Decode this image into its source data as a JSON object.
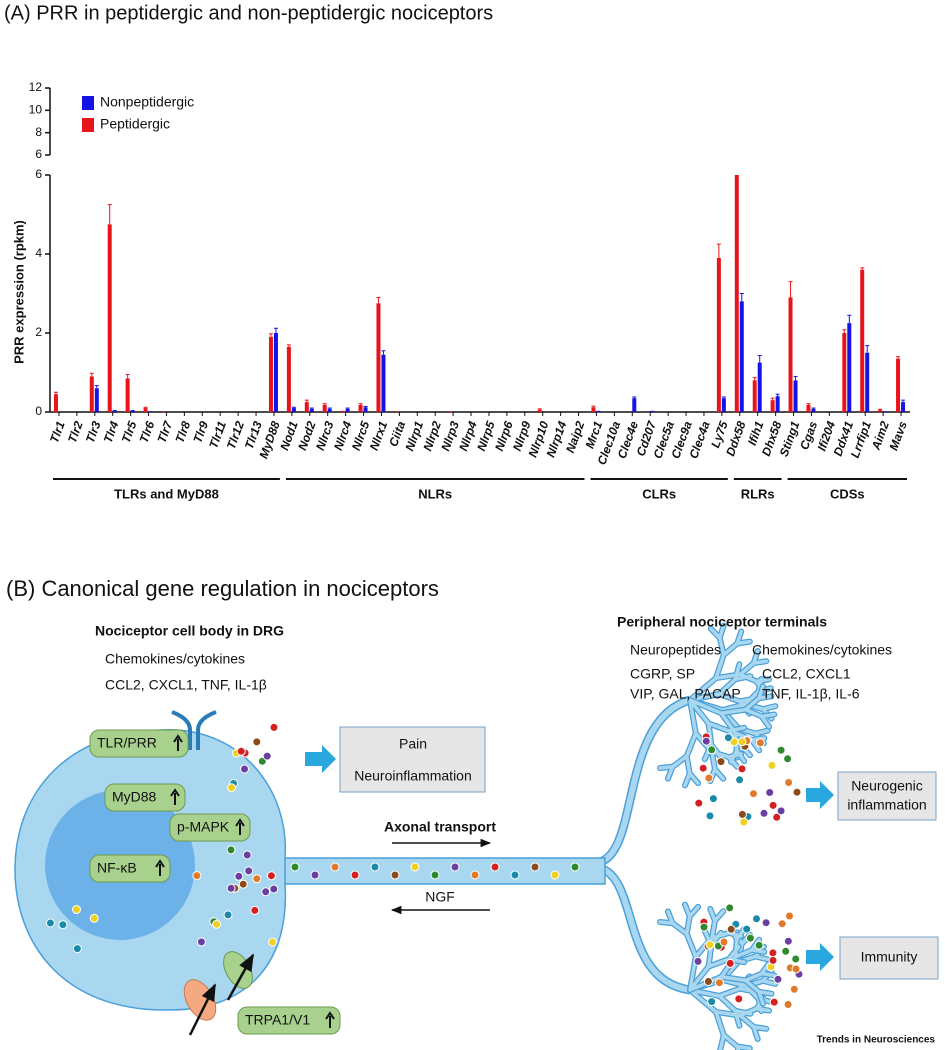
{
  "chart_data": {
    "type": "bar",
    "title": "(A)  PRR in peptidergic and non-peptidergic nociceptors",
    "y_label": "PRR expression (rpkm)",
    "categories": [
      "Tlr1",
      "Tlr2",
      "Tlr3",
      "Tlr4",
      "Tlr5",
      "Tlr6",
      "Tlr7",
      "Tlr8",
      "Tlr9",
      "Tlr11",
      "Tlr12",
      "Tlr13",
      "MyD88",
      "Nod1",
      "Nod2",
      "Nlrc3",
      "Nlrc4",
      "Nlrc5",
      "Nlrx1",
      "Ciita",
      "Nlrp1",
      "Nlrp2",
      "Nlrp3",
      "Nlrp4",
      "Nlrp5",
      "Nlrp6",
      "Nlrp9",
      "Nlrp10",
      "Nlrp14",
      "Naip2",
      "Mrc1",
      "Clec10a",
      "Clec4e",
      "Cd207",
      "Clec5a",
      "Clec9a",
      "Clec4a",
      "Ly75",
      "Ddx58",
      "Ifih1",
      "Dhx58",
      "Sting1",
      "Cgas",
      "Ifi204",
      "Ddx41",
      "Lrrfip1",
      "Aim2",
      "Mavs"
    ],
    "series": [
      {
        "name": "Peptidergic",
        "color": "#e8141c",
        "values": [
          0.45,
          0,
          0.9,
          4.75,
          0.85,
          0.1,
          0.02,
          0,
          0,
          0,
          0,
          0,
          1.9,
          1.65,
          0.25,
          0.18,
          0.03,
          0.18,
          2.75,
          0.02,
          0,
          0,
          0.02,
          0,
          0,
          0,
          0,
          0.06,
          0,
          0,
          0.12,
          0,
          0,
          0,
          0,
          0,
          0,
          3.9,
          6,
          0.8,
          0.3,
          2.9,
          0.18,
          0,
          2,
          3.6,
          0.05,
          1.35
        ],
        "errors": [
          0.05,
          0,
          0.08,
          0.5,
          0.1,
          0.02,
          0,
          0,
          0,
          0,
          0,
          0,
          0.08,
          0.05,
          0.05,
          0.03,
          0,
          0.03,
          0.15,
          0,
          0,
          0,
          0,
          0,
          0,
          0,
          0,
          0.02,
          0,
          0,
          0.03,
          0,
          0,
          0,
          0,
          0,
          0,
          0.35,
          0,
          0.07,
          0.05,
          0.4,
          0.03,
          0,
          0.08,
          0.05,
          0.02,
          0.05
        ]
      },
      {
        "name": "Nonpeptidergic",
        "color": "#1414e6",
        "values": [
          0,
          0,
          0.6,
          0.05,
          0.05,
          0.02,
          0,
          0,
          0,
          0,
          0,
          0,
          2,
          0.1,
          0.08,
          0.08,
          0.08,
          0.12,
          1.45,
          0,
          0,
          0,
          0,
          0,
          0,
          0,
          0,
          0,
          0,
          0,
          0.03,
          0,
          0.35,
          0.03,
          0,
          0,
          0,
          0.35,
          2.8,
          1.25,
          0.4,
          0.8,
          0.08,
          0,
          2.25,
          1.5,
          0.02,
          0.25
        ],
        "errors": [
          0,
          0,
          0.07,
          0,
          0,
          0,
          0,
          0,
          0,
          0,
          0,
          0,
          0.12,
          0.02,
          0.02,
          0.02,
          0.02,
          0.02,
          0.1,
          0,
          0,
          0,
          0,
          0,
          0,
          0,
          0,
          0,
          0,
          0,
          0,
          0,
          0.03,
          0,
          0,
          0,
          0,
          0.03,
          0.2,
          0.18,
          0.05,
          0.1,
          0.02,
          0,
          0.2,
          0.18,
          0,
          0.05
        ]
      }
    ],
    "legend": [
      "Nonpeptidergic",
      "Peptidergic"
    ],
    "legend_position": "upper left",
    "ylim": [
      0,
      6
    ],
    "yticks": [
      0,
      2,
      4,
      6
    ],
    "ylim_upper": [
      6,
      12
    ],
    "yticks_upper": [
      6,
      8,
      10,
      12
    ],
    "groups": [
      {
        "label": "TLRs and MyD88",
        "count": 13
      },
      {
        "label": "NLRs",
        "count": 17
      },
      {
        "label": "CLRs",
        "count": 8
      },
      {
        "label": "RLRs",
        "count": 3
      },
      {
        "label": "CDSs",
        "count": 7
      }
    ]
  },
  "panel_b": {
    "title": "(B)  Canonical gene regulation in nociceptors",
    "cell_body": {
      "heading": "Nociceptor cell body in DRG",
      "subheading": "Chemokines/cytokines",
      "items": "CCL2, CXCL1, TNF, IL-1β"
    },
    "molecules": [
      "TLR/PRR",
      "MyD88",
      "p-MAPK",
      "NF-κB",
      "TRPA1/V1"
    ],
    "outcome_box": [
      "Pain",
      "Neuroinflammation"
    ],
    "axon": {
      "anterograde": "Axonal transport",
      "retrograde": "NGF"
    },
    "terminals": {
      "heading": "Peripheral nociceptor terminals",
      "columns": [
        {
          "heading": "Neuropeptides",
          "lines": [
            "CGRP, SP",
            "VIP, GAL, PACAP"
          ]
        },
        {
          "heading": "Chemokines/cytokines",
          "lines": [
            "CCL2, CXCL1",
            "TNF, IL-1β, IL-6"
          ]
        }
      ]
    },
    "terminal_outcomes": [
      [
        "Neurogenic",
        "inflammation"
      ],
      [
        "Immunity"
      ]
    ]
  },
  "footer": "Trends in Neurosciences"
}
